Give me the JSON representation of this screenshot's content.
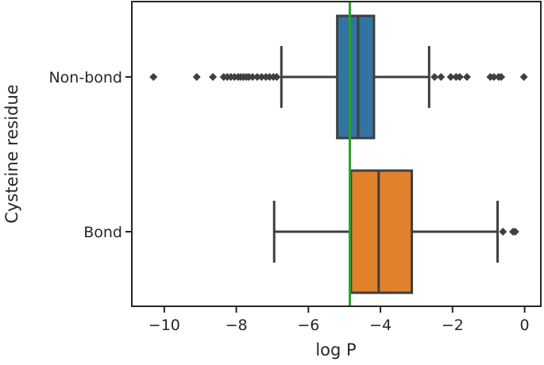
{
  "chart_data": {
    "type": "boxplot",
    "orientation": "horizontal",
    "xlabel": "log P",
    "ylabel": "Cysteine residue",
    "xlim": [
      -10.9,
      0.45
    ],
    "xticks": [
      -10,
      -8,
      -6,
      -4,
      -2,
      0
    ],
    "xtick_labels": [
      "−10",
      "−8",
      "−6",
      "−4",
      "−2",
      "0"
    ],
    "grid": false,
    "legend": "none",
    "reference_line": {
      "x": -4.85,
      "color": "#2ca02c"
    },
    "series": [
      {
        "category": "Non-bond",
        "color": "#3274a1",
        "whisker_low": -6.75,
        "q1": -5.2,
        "median": -4.62,
        "q3": -4.18,
        "whisker_high": -2.65,
        "outliers": [
          -10.3,
          -9.1,
          -8.65,
          -8.35,
          -8.25,
          -8.15,
          -8.05,
          -7.95,
          -7.88,
          -7.8,
          -7.72,
          -7.65,
          -7.55,
          -7.42,
          -7.3,
          -7.18,
          -7.08,
          -6.97,
          -6.88,
          -2.5,
          -2.32,
          -2.05,
          -1.9,
          -1.8,
          -1.6,
          -0.95,
          -0.85,
          -0.72,
          -0.65,
          -0.02
        ]
      },
      {
        "category": "Bond",
        "color": "#e1812c",
        "whisker_low": -6.95,
        "q1": -4.82,
        "median": -4.05,
        "q3": -3.13,
        "whisker_high": -0.75,
        "outliers": [
          -0.6,
          -0.32,
          -0.26
        ]
      }
    ]
  }
}
